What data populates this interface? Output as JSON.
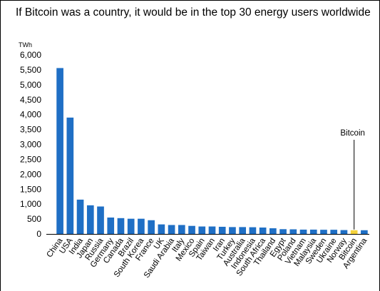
{
  "chart_data": {
    "type": "bar",
    "title": "If Bitcoin was a country, it would be in the top 30 energy users worldwide",
    "unit_label": "TWh",
    "xlabel": "",
    "ylabel": "",
    "ylim": [
      0,
      6000
    ],
    "yticks": [
      "0",
      "500",
      "1,000",
      "1,500",
      "2,000",
      "2,500",
      "3,000",
      "3,500",
      "4,000",
      "4,500",
      "5,000",
      "5,500",
      "6,000"
    ],
    "grid": false,
    "legend": "none",
    "categories": [
      "China",
      "USA",
      "India",
      "Japan",
      "Russia",
      "Germany",
      "Canada",
      "Brazil",
      "South Korea",
      "France",
      "UK",
      "Saudi Arabia",
      "Italy",
      "Mexico",
      "Spain",
      "Taiwan",
      "Iran",
      "Turkey",
      "Australia",
      "Indonesia",
      "South Africa",
      "Thailand",
      "Egypt",
      "Poland",
      "Vietnam",
      "Malaysia",
      "Sweden",
      "Ukraine",
      "Norway",
      "Bitcoin",
      "Argentina"
    ],
    "values": [
      5560,
      3900,
      1150,
      960,
      920,
      550,
      530,
      510,
      510,
      460,
      320,
      300,
      300,
      270,
      250,
      250,
      240,
      230,
      230,
      225,
      215,
      190,
      160,
      155,
      145,
      145,
      140,
      140,
      130,
      125,
      125
    ],
    "highlight_category": "Bitcoin",
    "annotation": "Bitcoin",
    "colors": {
      "bar": "#1f6fc5",
      "highlight": "#f5d33b"
    }
  }
}
